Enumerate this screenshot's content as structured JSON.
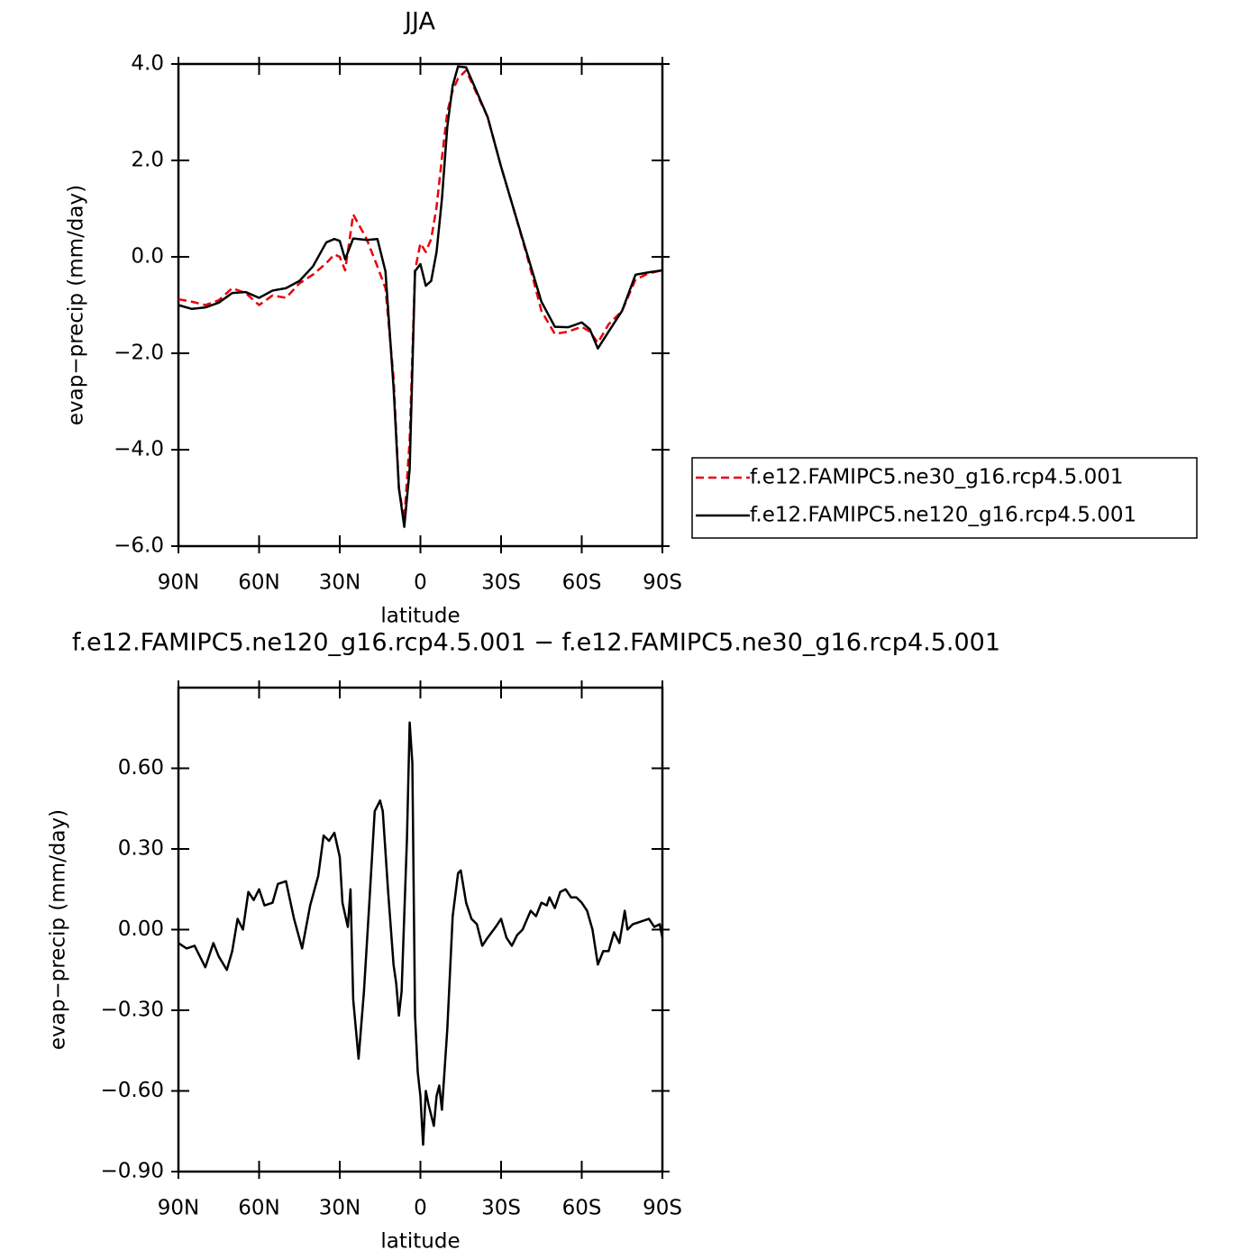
{
  "chart_data": [
    {
      "type": "line",
      "title": "JJA",
      "xlabel": "latitude",
      "ylabel": "evap−precip (mm/day)",
      "x": [
        90,
        85,
        80,
        75,
        70,
        65,
        60,
        55,
        50,
        45,
        40,
        35,
        32,
        30,
        28,
        25,
        20,
        16,
        13,
        10,
        8,
        6,
        4,
        2,
        0,
        -2,
        -4,
        -6,
        -8,
        -10,
        -12,
        -14,
        -17,
        -20,
        -25,
        -30,
        -35,
        -40,
        -45,
        -50,
        -55,
        -60,
        -63,
        -66,
        -70,
        -75,
        -80,
        -85,
        -90
      ],
      "series": [
        {
          "name": "f.e12.FAMIPC5.ne30_g16.rcp4.5.001",
          "color": "#e8000b",
          "linestyle": "dashed",
          "values": [
            -0.88,
            -0.93,
            -1.0,
            -0.9,
            -0.65,
            -0.75,
            -1.0,
            -0.8,
            -0.85,
            -0.55,
            -0.37,
            -0.13,
            0.05,
            0,
            -0.28,
            0.88,
            0.37,
            -0.2,
            -0.65,
            -2.5,
            -4.8,
            -5.45,
            -3.8,
            -0.28,
            0.28,
            0.1,
            0.37,
            1.03,
            2.05,
            3.0,
            3.45,
            3.7,
            3.87,
            3.5,
            2.9,
            1.87,
            0.93,
            -0.05,
            -1.12,
            -1.6,
            -1.55,
            -1.45,
            -1.55,
            -1.78,
            -1.4,
            -1.12,
            -0.47,
            -0.34,
            -0.28
          ]
        },
        {
          "name": "f.e12.FAMIPC5.ne120_g16.rcp4.5.001",
          "color": "#000000",
          "linestyle": "solid",
          "values": [
            -1.0,
            -1.08,
            -1.05,
            -0.95,
            -0.75,
            -0.73,
            -0.85,
            -0.7,
            -0.65,
            -0.5,
            -0.2,
            0.3,
            0.37,
            0.33,
            -0.05,
            0.38,
            0.35,
            0.37,
            -0.3,
            -2.7,
            -4.8,
            -5.6,
            -4.4,
            -0.3,
            -0.15,
            -0.6,
            -0.5,
            0.1,
            1.2,
            2.7,
            3.55,
            3.95,
            3.93,
            3.55,
            2.9,
            1.87,
            0.93,
            0,
            -0.93,
            -1.45,
            -1.46,
            -1.36,
            -1.5,
            -1.9,
            -1.55,
            -1.12,
            -0.37,
            -0.32,
            -0.28
          ]
        }
      ],
      "xlim": [
        90,
        -90
      ],
      "xticks": [
        {
          "value": 90,
          "label": "90N"
        },
        {
          "value": 60,
          "label": "60N"
        },
        {
          "value": 30,
          "label": "30N"
        },
        0,
        {
          "value": -30,
          "label": "30S"
        },
        {
          "value": -60,
          "label": "60S"
        },
        {
          "value": -90,
          "label": "90S"
        }
      ],
      "ylim": [
        -6,
        4
      ],
      "yticks": [
        {
          "value": -6,
          "label": "−6.0"
        },
        {
          "value": -4,
          "label": "−4.0"
        },
        {
          "value": -2,
          "label": "−2.0"
        },
        {
          "value": 0,
          "label": "0.0"
        },
        {
          "value": 2,
          "label": "2.0"
        },
        {
          "value": 4,
          "label": "4.0"
        }
      ],
      "legend": "right"
    },
    {
      "type": "line",
      "title": "f.e12.FAMIPC5.ne120_g16.rcp4.5.001 − f.e12.FAMIPC5.ne30_g16.rcp4.5.001",
      "xlabel": "latitude",
      "ylabel": "evap−precip (mm/day)",
      "x": [
        90,
        87,
        84,
        80,
        77,
        75,
        72,
        70,
        68,
        66,
        64,
        62,
        60,
        58,
        55,
        53,
        50,
        47,
        44,
        41,
        38,
        36,
        34,
        32,
        30,
        29,
        27,
        26,
        25,
        23,
        21,
        19,
        17,
        15,
        14,
        12,
        10,
        9,
        8,
        7,
        5,
        4,
        3,
        2,
        1,
        0,
        -1,
        -2,
        -3,
        -5,
        -6,
        -7,
        -8,
        -10,
        -12,
        -14,
        -15,
        -17,
        -19,
        -21,
        -23,
        -25,
        -28,
        -30,
        -32,
        -34,
        -36,
        -38,
        -41,
        -43,
        -45,
        -47,
        -48,
        -50,
        -52,
        -54,
        -56,
        -58,
        -60,
        -62,
        -64,
        -66,
        -68,
        -70,
        -72,
        -74,
        -76,
        -77,
        -79,
        -82,
        -85,
        -87,
        -89,
        -90
      ],
      "series": [
        {
          "color": "#000000",
          "linestyle": "solid",
          "values": [
            -0.05,
            -0.07,
            -0.06,
            -0.14,
            -0.05,
            -0.1,
            -0.15,
            -0.08,
            0.04,
            0,
            0.14,
            0.11,
            0.15,
            0.09,
            0.1,
            0.17,
            0.18,
            0.04,
            -0.07,
            0.09,
            0.2,
            0.35,
            0.33,
            0.36,
            0.27,
            0.1,
            0.01,
            0.15,
            -0.26,
            -0.48,
            -0.23,
            0.1,
            0.44,
            0.48,
            0.44,
            0.14,
            -0.13,
            -0.2,
            -0.32,
            -0.23,
            0.34,
            0.77,
            0.62,
            -0.32,
            -0.53,
            -0.62,
            -0.8,
            -0.6,
            -0.65,
            -0.73,
            -0.62,
            -0.58,
            -0.67,
            -0.37,
            0.05,
            0.21,
            0.22,
            0.1,
            0.04,
            0.02,
            -0.06,
            -0.03,
            0.01,
            0.04,
            -0.03,
            -0.06,
            -0.02,
            0,
            0.07,
            0.05,
            0.1,
            0.09,
            0.12,
            0.08,
            0.14,
            0.15,
            0.12,
            0.12,
            0.1,
            0.07,
            0,
            -0.13,
            -0.08,
            -0.08,
            -0.01,
            -0.05,
            0.07,
            0,
            0.02,
            0.03,
            0.04,
            0.01,
            0.02,
            -0.03
          ]
        }
      ],
      "xlim": [
        90,
        -90
      ],
      "xticks": [
        {
          "value": 90,
          "label": "90N"
        },
        {
          "value": 60,
          "label": "60N"
        },
        {
          "value": 30,
          "label": "30N"
        },
        0,
        {
          "value": -30,
          "label": "30S"
        },
        {
          "value": -60,
          "label": "60S"
        },
        {
          "value": -90,
          "label": "90S"
        }
      ],
      "ylim": [
        -0.9,
        0.9
      ],
      "yticks": [
        {
          "value": -0.9,
          "label": "−0.90"
        },
        {
          "value": -0.6,
          "label": "−0.60"
        },
        {
          "value": -0.3,
          "label": "−0.30"
        },
        {
          "value": 0,
          "label": "0.00"
        },
        {
          "value": 0.3,
          "label": "0.30"
        },
        {
          "value": 0.6,
          "label": "0.60"
        }
      ]
    }
  ]
}
